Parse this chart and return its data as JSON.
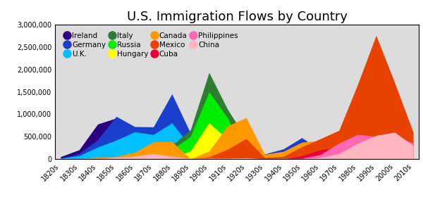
{
  "title": "U.S. Immigration Flows by Country",
  "decades": [
    "1820s",
    "1830s",
    "1840s",
    "1850s",
    "1860s",
    "1870s",
    "1880s",
    "1890s",
    "1900s",
    "1910s",
    "1920s",
    "1930s",
    "1940s",
    "1950s",
    "1960s",
    "1970s",
    "1980s",
    "1990s",
    "2000s",
    "2010s"
  ],
  "series": [
    {
      "name": "Ireland",
      "color": "#2b0080",
      "values": [
        54338,
        207381,
        780719,
        914119,
        435778,
        436871,
        655482,
        388416,
        339065,
        146181,
        220591,
        13167,
        19789,
        57332,
        37461,
        11490,
        31969,
        56950,
        14850,
        10000
      ]
    },
    {
      "name": "Germany",
      "color": "#1a3fcc",
      "values": [
        6761,
        124726,
        434626,
        951667,
        723734,
        718182,
        1452970,
        579072,
        341498,
        143945,
        412202,
        114058,
        226578,
        477765,
        190796,
        74414,
        91961,
        92606,
        73912,
        45000
      ]
    },
    {
      "name": "U.K.",
      "color": "#00bfff",
      "values": [
        25079,
        75810,
        267044,
        423974,
        606896,
        548043,
        807357,
        271538,
        525950,
        341408,
        341408,
        31572,
        139306,
        197000,
        213822,
        137374,
        159173,
        156000,
        160000,
        90000
      ]
    },
    {
      "name": "Italy",
      "color": "#2e7d32",
      "values": [
        439,
        2253,
        1870,
        9231,
        11725,
        55759,
        307309,
        651893,
        1930475,
        1109524,
        455315,
        68028,
        57661,
        185491,
        214111,
        129368,
        32900,
        32900,
        13100,
        15000
      ]
    },
    {
      "name": "Russia",
      "color": "#00ee00",
      "values": [
        89,
        277,
        551,
        457,
        2512,
        39284,
        213282,
        505290,
        1501301,
        921201,
        65199,
        1356,
        571,
        671,
        2465,
        38961,
        57677,
        58561,
        45000,
        30000
      ]
    },
    {
      "name": "Hungary",
      "color": "#ffff00",
      "values": [
        0,
        0,
        0,
        0,
        0,
        0,
        16014,
        181288,
        808511,
        442693,
        274450,
        26948,
        3469,
        36637,
        5401,
        6046,
        6550,
        8500,
        9000,
        5000
      ]
    },
    {
      "name": "Canada",
      "color": "#ff9900",
      "values": [
        2759,
        13624,
        41723,
        59309,
        153878,
        383640,
        393304,
        3311,
        179226,
        742185,
        924515,
        108527,
        171718,
        377952,
        413310,
        169939,
        156938,
        194000,
        158000,
        105000
      ]
    },
    {
      "name": "Mexico",
      "color": "#e84200",
      "values": [
        4817,
        6599,
        3271,
        3078,
        1957,
        5162,
        1913,
        971,
        49642,
        219004,
        459287,
        32709,
        60589,
        273847,
        453937,
        640294,
        1655843,
        2757418,
        1704166,
        600000
      ]
    },
    {
      "name": "Cuba",
      "color": "#e8003c",
      "values": [
        0,
        0,
        0,
        0,
        0,
        0,
        0,
        0,
        0,
        0,
        0,
        0,
        0,
        73221,
        208536,
        264863,
        144578,
        169322,
        180000,
        70000
      ]
    },
    {
      "name": "Philippines",
      "color": "#ff69b4",
      "values": [
        0,
        0,
        0,
        0,
        0,
        0,
        0,
        0,
        0,
        0,
        0,
        0,
        0,
        19307,
        101518,
        354987,
        548764,
        503945,
        542000,
        350000
      ]
    },
    {
      "name": "China",
      "color": "#ffb6c1",
      "values": [
        0,
        0,
        325,
        41397,
        64301,
        123201,
        61711,
        14799,
        20605,
        21278,
        29907,
        4928,
        16709,
        9657,
        34764,
        124160,
        346747,
        529000,
        600000,
        300000
      ]
    }
  ],
  "ylim": [
    0,
    3000000
  ],
  "yticks": [
    0,
    500000,
    1000000,
    1500000,
    2000000,
    2500000,
    3000000
  ],
  "ytick_labels": [
    "0",
    "500,000",
    "1,000,000",
    "1,500,000",
    "2,000,000",
    "2,500,000",
    "3,000,000"
  ],
  "bg_color": "#dcdcdc",
  "fig_bg_color": "#ffffff",
  "legend_ncol": 4,
  "legend_fontsize": 7.5,
  "title_fontsize": 13,
  "tick_fontsize": 7
}
